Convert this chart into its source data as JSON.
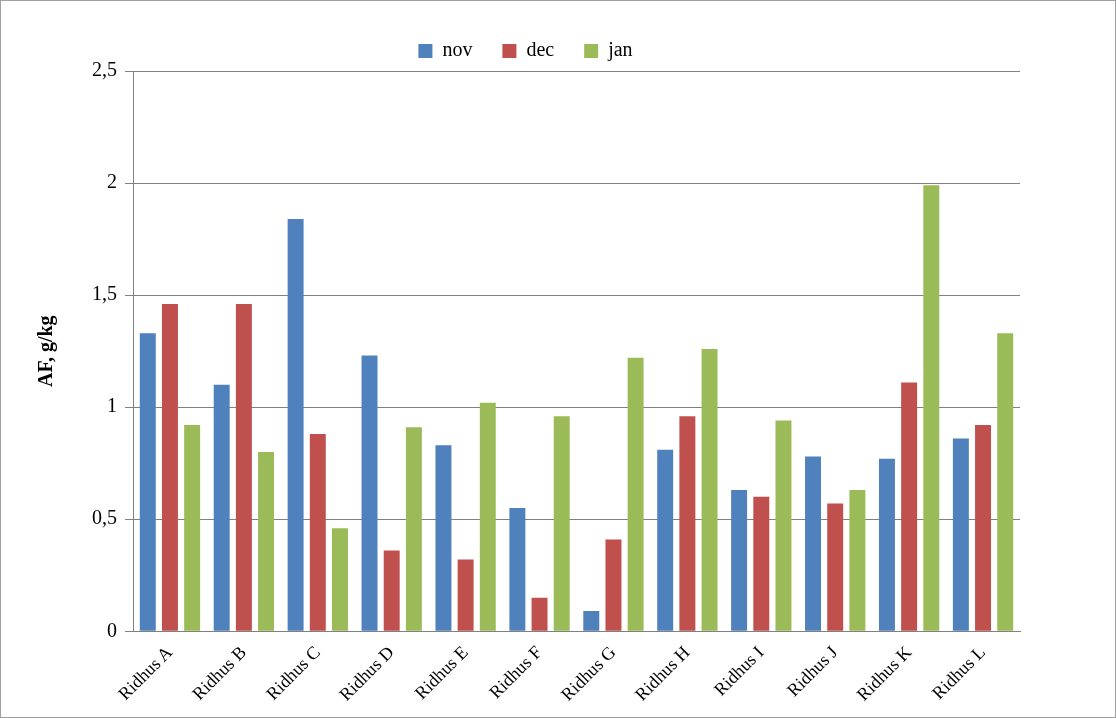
{
  "chart_data": {
    "type": "bar",
    "ylabel": "AF, g/kg",
    "categories": [
      "Ridhus A",
      "Ridhus B",
      "Ridhus C",
      "Ridhus D",
      "Ridhus E",
      "Ridhus F",
      "Ridhus G",
      "Ridhus H",
      "Ridhus I",
      "Ridhus J",
      "Ridhus K",
      "Ridhus L"
    ],
    "series": [
      {
        "name": "nov",
        "color": "#4f81bd",
        "values": [
          1.33,
          1.1,
          1.84,
          1.23,
          0.83,
          0.55,
          0.09,
          0.81,
          0.63,
          0.78,
          0.77,
          0.86
        ]
      },
      {
        "name": "dec",
        "color": "#c0504d",
        "values": [
          1.46,
          1.46,
          0.88,
          0.36,
          0.32,
          0.15,
          0.41,
          0.96,
          0.6,
          0.57,
          1.11,
          0.92
        ]
      },
      {
        "name": "jan",
        "color": "#9bbb59",
        "values": [
          0.92,
          0.8,
          0.46,
          0.91,
          1.02,
          0.96,
          1.22,
          1.26,
          0.94,
          0.63,
          1.99,
          1.33
        ]
      }
    ],
    "ylim": [
      0,
      2.5
    ],
    "yticks": [
      0,
      {
        "value": 0.5,
        "label": "0,5"
      },
      1,
      {
        "value": 1.5,
        "label": "1,5"
      },
      2,
      {
        "value": 2.5,
        "label": "2,5"
      }
    ],
    "grid": "y",
    "legend": "top"
  }
}
